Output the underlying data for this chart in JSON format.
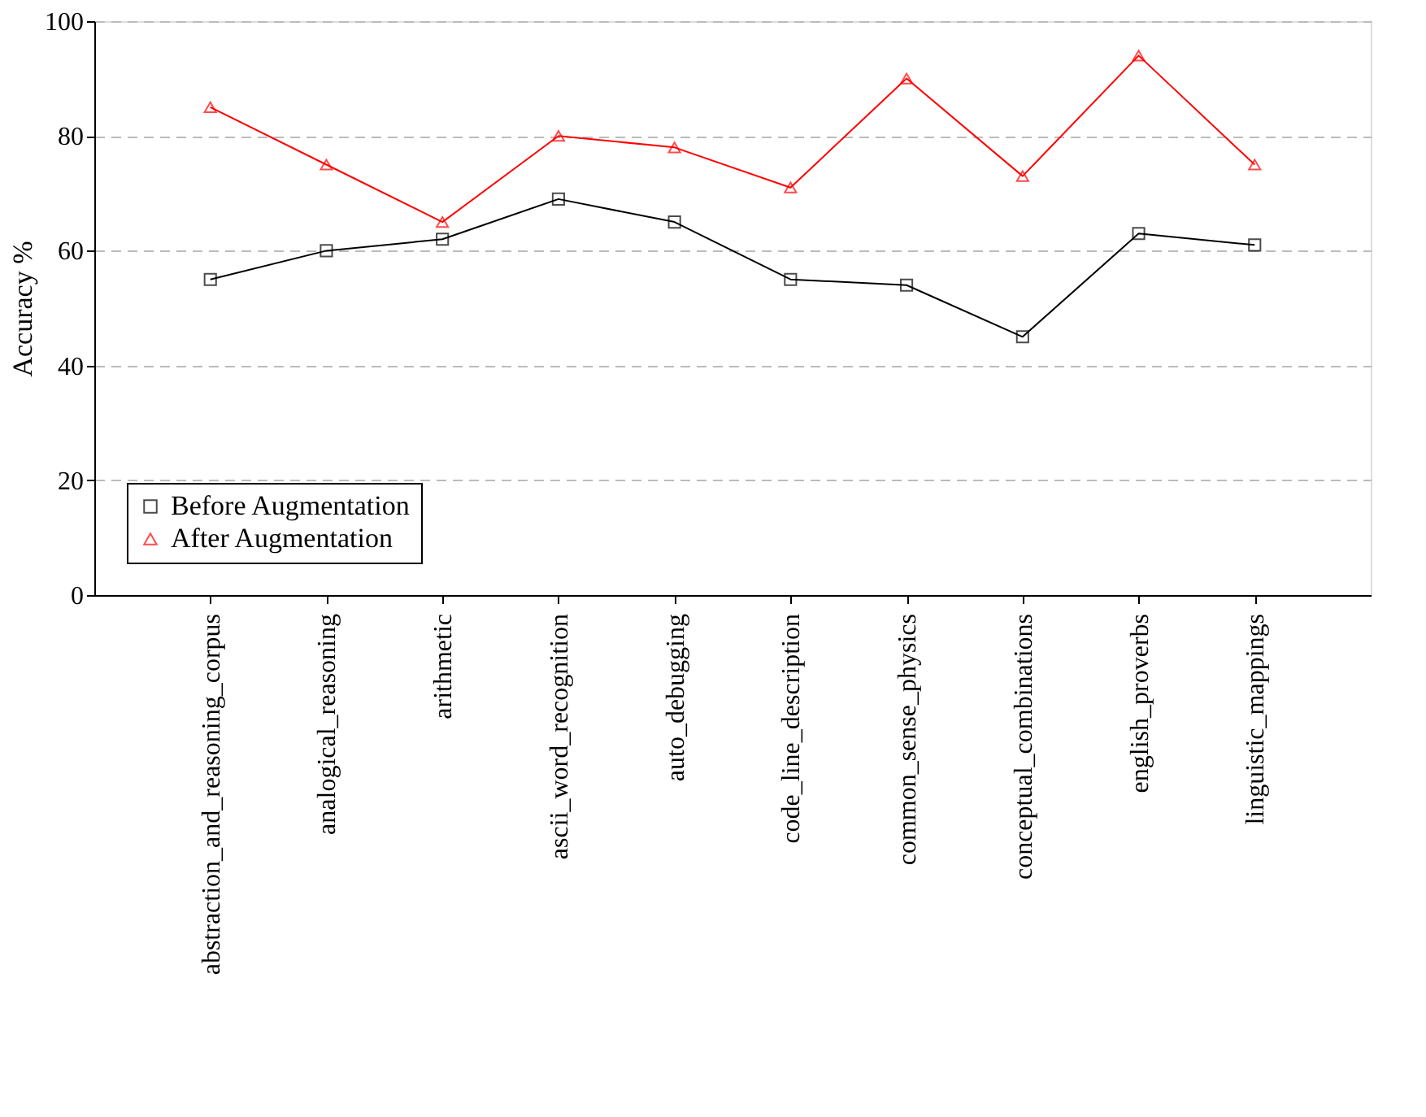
{
  "chart_data": {
    "type": "line",
    "ylabel": "Accuracy %",
    "categories": [
      "abstraction_and_reasoning_corpus",
      "analogical_reasoning",
      "arithmetic",
      "ascii_word_recognition",
      "auto_debugging",
      "code_line_description",
      "common_sense_physics",
      "conceptual_combinations",
      "english_proverbs",
      "linguistic_mappings"
    ],
    "series": [
      {
        "name": "Before Augmentation",
        "color": "#000000",
        "marker": "square",
        "values": [
          55,
          60,
          62,
          69,
          65,
          55,
          54,
          45,
          63,
          61
        ]
      },
      {
        "name": "After Augmentation",
        "color": "#ff0000",
        "marker": "triangle",
        "values": [
          85,
          75,
          65,
          80,
          78,
          71,
          90,
          73,
          94,
          75
        ]
      }
    ],
    "ylim": [
      0,
      100
    ],
    "yticks": [
      0,
      20,
      40,
      60,
      80,
      100
    ],
    "grid": "y",
    "legend": "bottom left",
    "line_style": "solid"
  }
}
